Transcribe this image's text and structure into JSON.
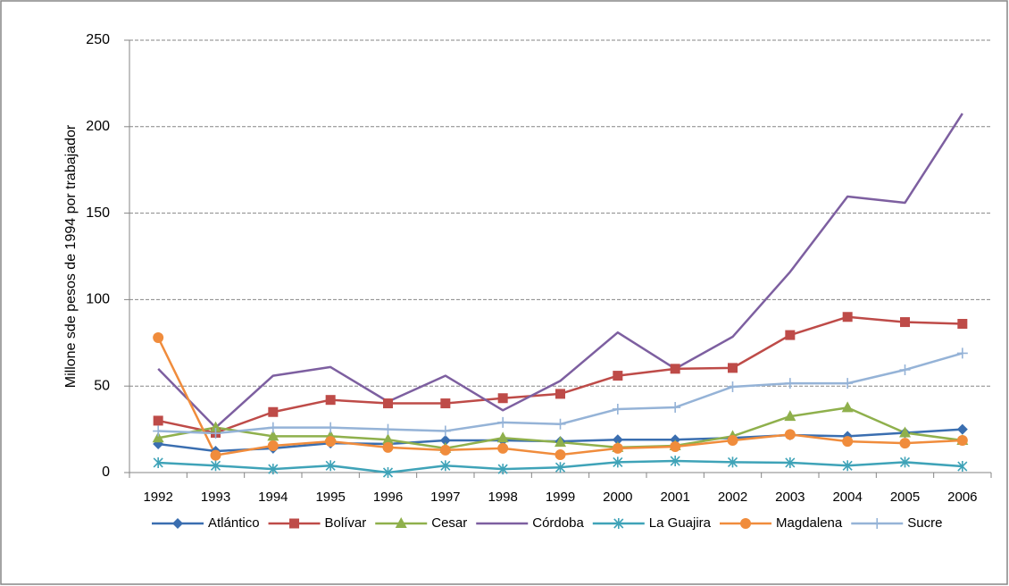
{
  "chart_data": {
    "type": "line",
    "y_label": "Millone sde pesos de 1994 por trabajador",
    "categories": [
      "1992",
      "1993",
      "1994",
      "1995",
      "1996",
      "1997",
      "1998",
      "1999",
      "2000",
      "2001",
      "2002",
      "2003",
      "2004",
      "2005",
      "2006"
    ],
    "ylim": [
      0,
      250
    ],
    "yticks": [
      0,
      50,
      100,
      150,
      200,
      250
    ],
    "grid": true,
    "legend": "bottom",
    "series": [
      {
        "name": "Atlántico",
        "color": "#3a6eb0",
        "marker": "diamond",
        "values": [
          16.5,
          12.4,
          14,
          17,
          16.5,
          18.6,
          18.6,
          18,
          19,
          19,
          20,
          21.7,
          21,
          23,
          25
        ]
      },
      {
        "name": "Bolívar",
        "color": "#be4b48",
        "marker": "square",
        "values": [
          30,
          23,
          35,
          42,
          40,
          40,
          43,
          45.5,
          56,
          60,
          60.5,
          79.5,
          90,
          87,
          86
        ]
      },
      {
        "name": "Cesar",
        "color": "#8fb04c",
        "marker": "triangle",
        "values": [
          20,
          26,
          21,
          21,
          19,
          14,
          20,
          17.5,
          14.5,
          15.5,
          21,
          32.5,
          37.5,
          23,
          18.6
        ]
      },
      {
        "name": "Córdoba",
        "color": "#7d5fa0",
        "marker": "none",
        "values": [
          60,
          26,
          56,
          61,
          41,
          56,
          36,
          53,
          81,
          60,
          78.5,
          116,
          159.6,
          156,
          207.6
        ]
      },
      {
        "name": "La Guajira",
        "color": "#3fa3b8",
        "marker": "star",
        "values": [
          5.7,
          4,
          2,
          4,
          0,
          4,
          2,
          3,
          6,
          6.7,
          6,
          5.7,
          4,
          6,
          3.6
        ]
      },
      {
        "name": "Magdalena",
        "color": "#f08c3c",
        "marker": "circle",
        "values": [
          78,
          10,
          15.5,
          18,
          14.5,
          13,
          14,
          10.3,
          14,
          15,
          18.6,
          22,
          18,
          17,
          18.6
        ]
      },
      {
        "name": "Sucre",
        "color": "#95b3d7",
        "marker": "plus",
        "values": [
          24,
          22.7,
          26,
          26,
          25,
          24,
          29,
          28,
          36.7,
          37.7,
          49.6,
          51.6,
          51.6,
          59.4,
          69
        ]
      }
    ]
  }
}
